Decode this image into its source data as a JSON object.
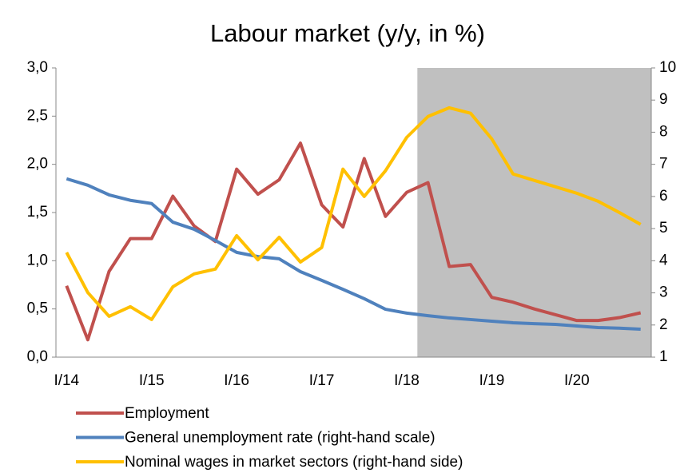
{
  "chart_data": {
    "type": "line",
    "title": "Labour market (y/y, in %)",
    "categories": [
      "I/14",
      null,
      null,
      null,
      "I/15",
      null,
      null,
      null,
      "I/16",
      null,
      null,
      null,
      "I/17",
      null,
      null,
      null,
      "I/18",
      null,
      null,
      null,
      "I/19",
      null,
      null,
      null,
      "I/20",
      null,
      null,
      null
    ],
    "series": [
      {
        "name": "Employment",
        "color": "#c0504d",
        "axis": "y",
        "values": [
          0.74,
          0.18,
          0.89,
          1.23,
          1.23,
          1.67,
          1.36,
          1.2,
          1.95,
          1.69,
          1.84,
          2.22,
          1.58,
          1.35,
          2.06,
          1.46,
          1.71,
          1.81,
          0.94,
          0.96,
          0.62,
          0.57,
          0.5,
          0.44,
          0.38,
          0.38,
          0.41,
          0.46
        ]
      },
      {
        "name": "General unemployment rate (right-hand scale)",
        "color": "#4f81bd",
        "axis": "y2",
        "values": [
          6.55,
          6.35,
          6.05,
          5.88,
          5.78,
          5.2,
          4.98,
          4.63,
          4.26,
          4.13,
          4.06,
          3.66,
          3.39,
          3.11,
          2.82,
          2.49,
          2.37,
          2.29,
          2.22,
          2.17,
          2.12,
          2.07,
          2.04,
          2.02,
          1.97,
          1.92,
          1.9,
          1.87
        ]
      },
      {
        "name": "Nominal wages in market sectors (right-hand side)",
        "color": "#ffc000",
        "axis": "y2",
        "values": [
          4.26,
          3.01,
          2.27,
          2.57,
          2.17,
          3.19,
          3.59,
          3.74,
          4.78,
          4.03,
          4.73,
          3.96,
          4.41,
          6.85,
          6.0,
          6.8,
          7.84,
          8.49,
          8.76,
          8.59,
          7.79,
          6.7,
          6.5,
          6.3,
          6.1,
          5.85,
          5.5,
          5.13
        ]
      }
    ],
    "ylim": [
      0,
      3
    ],
    "yticks": [
      {
        "value": 0,
        "label": "0,0"
      },
      {
        "value": 0.5,
        "label": "0,5"
      },
      {
        "value": 1,
        "label": "1,0"
      },
      {
        "value": 1.5,
        "label": "1,5"
      },
      {
        "value": 2,
        "label": "2,0"
      },
      {
        "value": 2.5,
        "label": "2,5"
      },
      {
        "value": 3,
        "label": "3,0"
      }
    ],
    "y2lim": [
      1,
      10
    ],
    "y2ticks": [
      1,
      2,
      3,
      4,
      5,
      6,
      7,
      8,
      9,
      10
    ],
    "shade_start_index": 17,
    "shade_color": "#c0c0c0",
    "legend": "bottom"
  }
}
